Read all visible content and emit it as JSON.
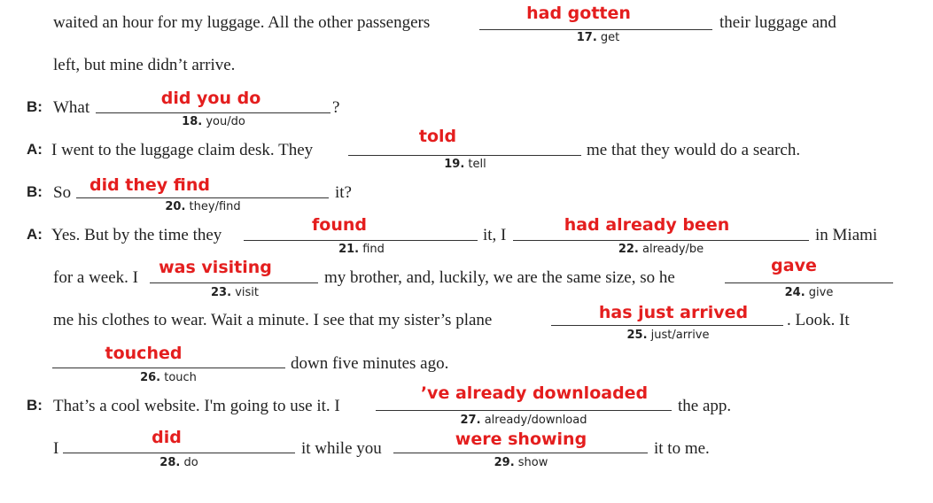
{
  "speakers": {
    "a": "A:",
    "b": "B:"
  },
  "text": {
    "l1a": "waited an hour for my luggage. All the other passengers",
    "l1b": "their luggage and",
    "l2": "left, but mine didn’t arrive.",
    "l3a": "What",
    "l3b": "?",
    "l4a": "I went to the luggage claim desk. They",
    "l4b": "me that they would do a search.",
    "l5a": "So",
    "l5b": "it?",
    "l6a": "Yes. But by the time they",
    "l6b": "it, I",
    "l6c": "in Miami",
    "l7a": "for a week. I",
    "l7b": "my brother, and, luckily, we are the same size, so he",
    "l8a": "me his clothes to wear. Wait a minute. I see that my sister’s plane",
    "l8b": ". Look. It",
    "l9a": "down five minutes ago.",
    "l10a": "That’s a cool website. I'm going to use it. I",
    "l10b": "the app.",
    "l11a": "I",
    "l11b": "it while you",
    "l11c": "it to me."
  },
  "items": [
    {
      "num": "17.",
      "hint": "get",
      "answer": "had gotten"
    },
    {
      "num": "18.",
      "hint": "you/do",
      "answer": "did you do"
    },
    {
      "num": "19.",
      "hint": "tell",
      "answer": "told"
    },
    {
      "num": "20.",
      "hint": "they/find",
      "answer": "did they find"
    },
    {
      "num": "21.",
      "hint": "find",
      "answer": "found"
    },
    {
      "num": "22.",
      "hint": "already/be",
      "answer": "had already been"
    },
    {
      "num": "23.",
      "hint": "visit",
      "answer": "was visiting"
    },
    {
      "num": "24.",
      "hint": "give",
      "answer": "gave"
    },
    {
      "num": "25.",
      "hint": "just/arrive",
      "answer": "has just arrived"
    },
    {
      "num": "26.",
      "hint": "touch",
      "answer": "touched"
    },
    {
      "num": "27.",
      "hint": "already/download",
      "answer": "’ve already downloaded"
    },
    {
      "num": "28.",
      "hint": "do",
      "answer": "did"
    },
    {
      "num": "29.",
      "hint": "show",
      "answer": "were showing"
    }
  ],
  "colors": {
    "answer": "#e41e1e",
    "text": "#222222"
  }
}
